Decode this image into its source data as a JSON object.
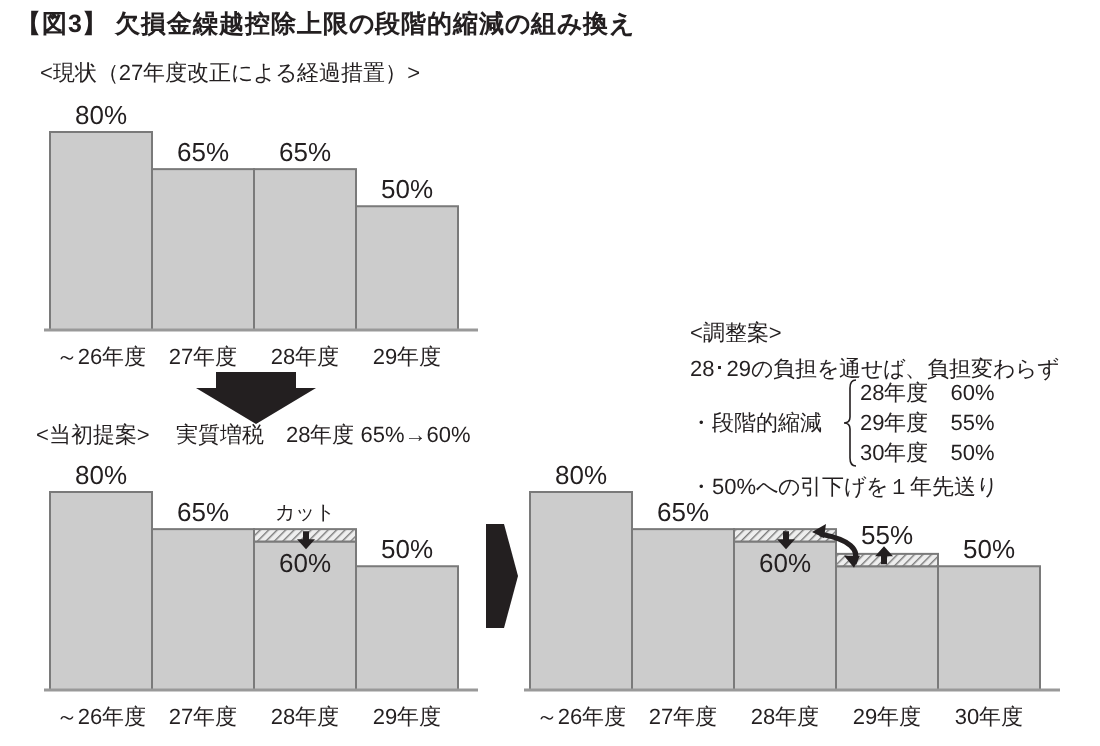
{
  "chart_data": [
    {
      "type": "bar",
      "title": "【図3】 欠損金繰越控除上限の段階的縮減の組み換え",
      "subtitle": "<現状（27年度改正による経過措置）>",
      "categories": [
        "～26年度",
        "27年度",
        "28年度",
        "29年度"
      ],
      "series": [
        {
          "color": "#cccccc",
          "values": [
            80,
            65,
            65,
            50
          ],
          "value_labels": [
            "80%",
            "65%",
            "65%",
            "50%"
          ]
        }
      ]
    },
    {
      "type": "bar",
      "title": "<当初提案>",
      "subtitle": "実質増税　28年度 65%→60%",
      "categories": [
        "～26年度",
        "27年度",
        "28年度",
        "29年度"
      ],
      "stacked": true,
      "series": [
        {
          "color": "#cccccc",
          "values": [
            80,
            65,
            60,
            50
          ],
          "value_labels": [
            "80%",
            "65%",
            "60%",
            "50%"
          ]
        },
        {
          "color": "#7a7a7a",
          "values": [
            null,
            null,
            5,
            null
          ]
        }
      ],
      "annotations": [
        {
          "text": "カット",
          "x": "28年度",
          "y": 65
        }
      ]
    },
    {
      "type": "bar",
      "title": "<調整案>",
      "categories": [
        "～26年度",
        "27年度",
        "28年度",
        "29年度",
        "30年度"
      ],
      "stacked": true,
      "series": [
        {
          "color": "#cccccc",
          "values": [
            80,
            65,
            60,
            50,
            50
          ],
          "value_labels": [
            "80%",
            "65%",
            "60%",
            null,
            "50%"
          ]
        },
        {
          "color": "#7a7a7a",
          "values": [
            null,
            null,
            5,
            5,
            null
          ]
        }
      ],
      "annotations": [
        "28･29の負担を通せば、負担変わらず",
        "・段階的縮減",
        "28年度　60%",
        "29年度　55%",
        "30年度　50%",
        "・50%への引下げを１年先送り",
        {
          "text": "55%",
          "x": "29年度",
          "y": 55
        }
      ]
    }
  ]
}
